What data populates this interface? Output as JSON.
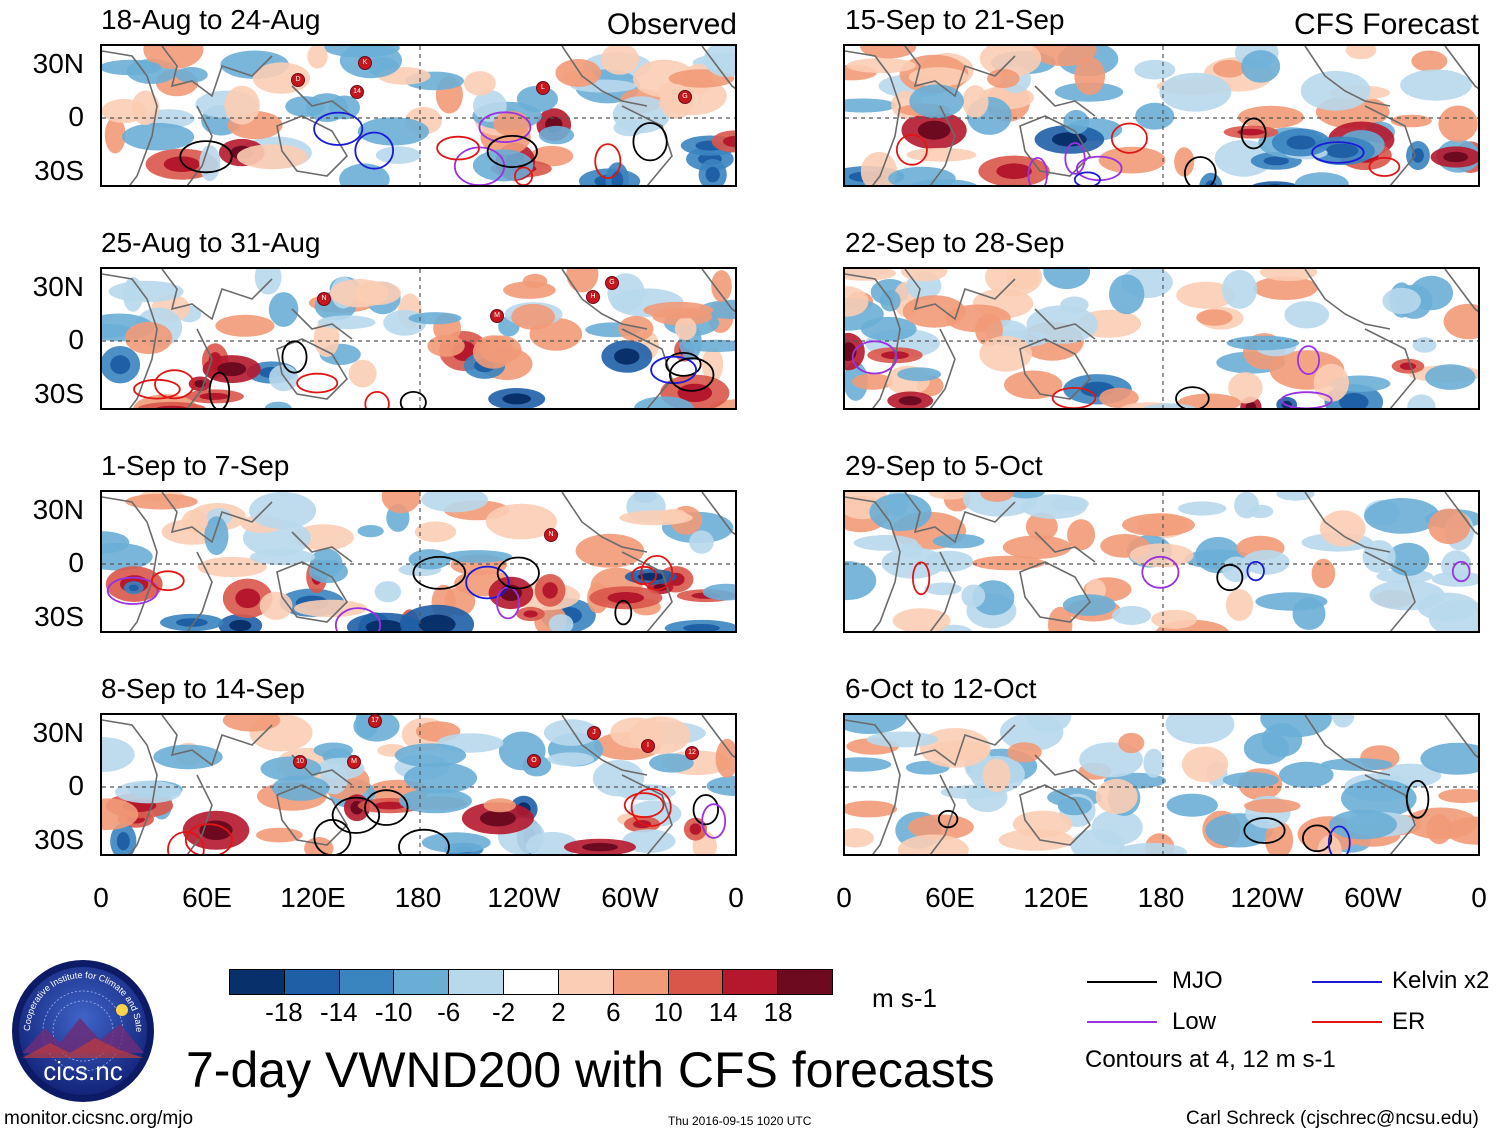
{
  "figure": {
    "title": "7-day VWND200 with CFS forecasts",
    "variable": "200-hPa meridional wind anomaly",
    "units": "m s-1",
    "contours_note": "Contours at 4, 12 m s-1"
  },
  "columns": {
    "observed_label": "Observed",
    "forecast_label": "CFS Forecast"
  },
  "panels": {
    "observed": [
      {
        "title": "18-Aug to 24-Aug"
      },
      {
        "title": "25-Aug to 31-Aug"
      },
      {
        "title": "1-Sep to 7-Sep"
      },
      {
        "title": "8-Sep to 14-Sep"
      }
    ],
    "forecast": [
      {
        "title": "15-Sep to 21-Sep"
      },
      {
        "title": "22-Sep to 28-Sep"
      },
      {
        "title": "29-Sep to 5-Oct"
      },
      {
        "title": "6-Oct to 12-Oct"
      }
    ]
  },
  "axes": {
    "lat_labels": [
      "30N",
      "0",
      "30S"
    ],
    "lon_labels": [
      "0",
      "60E",
      "120E",
      "180",
      "120W",
      "60W",
      "0"
    ]
  },
  "storm_markers": {
    "panel1": [
      "D",
      "K",
      "14",
      "L",
      "G"
    ],
    "panel2": [
      "N",
      "M",
      "H",
      "G"
    ],
    "panel3": [
      "N"
    ],
    "panel4": [
      "10",
      "M",
      "17",
      "O",
      "J",
      "I",
      "12"
    ]
  },
  "colorbar": {
    "tick_labels": [
      "-18",
      "-14",
      "-10",
      "-6",
      "-2",
      "2",
      "6",
      "10",
      "14",
      "18"
    ],
    "colors": [
      "#08306b",
      "#1f5fa6",
      "#3a84c0",
      "#6aaed6",
      "#b8d8ec",
      "#ffffff",
      "#fbcdb4",
      "#f19a78",
      "#d9574a",
      "#b5172c",
      "#6e0a1f"
    ],
    "units_label": "m s-1"
  },
  "legend": {
    "items": [
      {
        "label": "MJO",
        "color": "#000000"
      },
      {
        "label": "Kelvin x2",
        "color": "#1a1ad6"
      },
      {
        "label": "Low",
        "color": "#9932e0"
      },
      {
        "label": "ER",
        "color": "#e01515"
      }
    ]
  },
  "logo": {
    "ring_text": "Cooperative Institute for Climate and Satellites",
    "name": "cics.nc"
  },
  "footer": {
    "url": "monitor.cicsnc.org/mjo",
    "timestamp": "Thu 2016-09-15 1020 UTC",
    "credit": "Carl Schreck (cjschrec@ncsu.edu)"
  }
}
